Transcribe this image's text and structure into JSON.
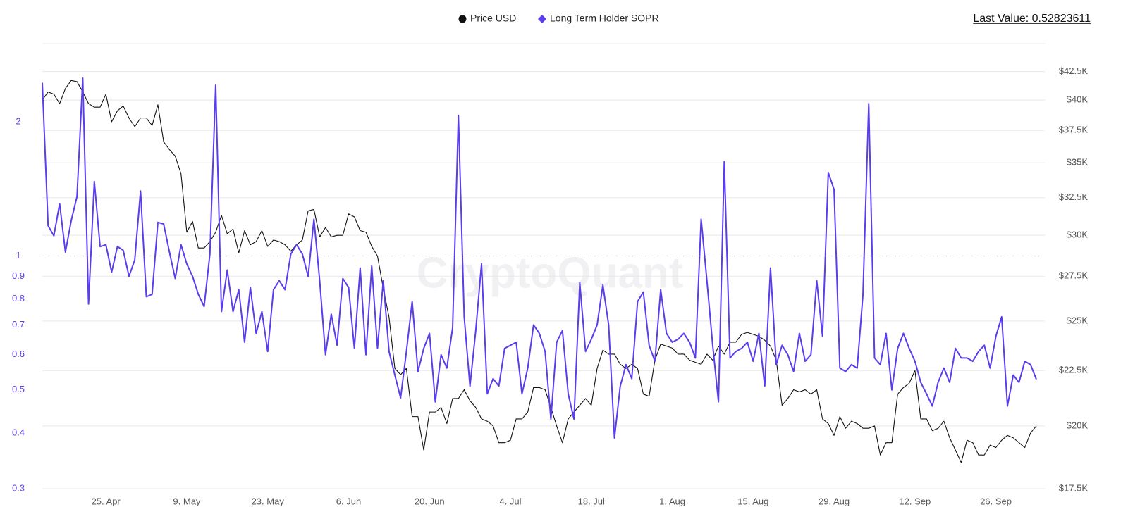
{
  "chart_data": {
    "type": "line",
    "log_scale": true,
    "grid": true,
    "legend": "top",
    "reference_line": 1,
    "annotation": "Last Value: 0.52823611",
    "watermark": "CryptoQuant",
    "categories": [
      null,
      null,
      null,
      null,
      null,
      null,
      null,
      null,
      null,
      null,
      null,
      "25. Apr",
      null,
      null,
      null,
      null,
      null,
      null,
      null,
      null,
      null,
      null,
      null,
      null,
      null,
      "9. May",
      null,
      null,
      null,
      null,
      null,
      null,
      null,
      null,
      null,
      null,
      null,
      null,
      null,
      "23. May",
      null,
      null,
      null,
      null,
      null,
      null,
      null,
      null,
      null,
      null,
      null,
      null,
      null,
      "6. Jun",
      null,
      null,
      null,
      null,
      null,
      null,
      null,
      null,
      null,
      null,
      null,
      null,
      null,
      "20. Jun",
      null,
      null,
      null,
      null,
      null,
      null,
      null,
      null,
      null,
      null,
      null,
      null,
      null,
      "4. Jul",
      null,
      null,
      null,
      null,
      null,
      null,
      null,
      null,
      null,
      null,
      null,
      null,
      null,
      "18. Jul",
      null,
      null,
      null,
      null,
      null,
      null,
      null,
      null,
      null,
      null,
      null,
      null,
      null,
      "1. Aug",
      null,
      null,
      null,
      null,
      null,
      null,
      null,
      null,
      null,
      null,
      null,
      null,
      null,
      "15. Aug",
      null,
      null,
      null,
      null,
      null,
      null,
      null,
      null,
      null,
      null,
      null,
      null,
      null,
      "29. Aug",
      null,
      null,
      null,
      null,
      null,
      null,
      null,
      null,
      null,
      null,
      null,
      null,
      null,
      "12. Sep",
      null,
      null,
      null,
      null,
      null,
      null,
      null,
      null,
      null,
      null,
      null,
      null,
      null,
      "26. Sep",
      null,
      null,
      null,
      null,
      null,
      null,
      null
    ],
    "series": [
      {
        "name": "Price USD",
        "color": "#111111",
        "marker": "circle",
        "axis": "y2",
        "values": [
          40000,
          40700,
          40500,
          39700,
          41000,
          41700,
          41600,
          40700,
          39700,
          39400,
          39400,
          40500,
          38200,
          39100,
          39500,
          38500,
          37800,
          38500,
          38500,
          37900,
          39600,
          36600,
          36000,
          35500,
          34200,
          30200,
          30900,
          29200,
          29200,
          29600,
          30200,
          31300,
          30100,
          30400,
          28900,
          30300,
          29400,
          29600,
          30300,
          29300,
          29700,
          29600,
          29400,
          29000,
          29400,
          29700,
          31600,
          31700,
          29900,
          30500,
          29900,
          30000,
          30000,
          31400,
          31200,
          30300,
          30200,
          29300,
          28700,
          26800,
          25200,
          22600,
          22300,
          22600,
          20400,
          20400,
          19000,
          20600,
          20600,
          20800,
          20100,
          21200,
          21200,
          21600,
          21100,
          20800,
          20300,
          20200,
          20000,
          19300,
          19300,
          19400,
          20300,
          20300,
          20600,
          21700,
          21700,
          21600,
          20800,
          20000,
          19300,
          20300,
          20600,
          20900,
          21200,
          20900,
          22600,
          23500,
          23300,
          23300,
          22800,
          22600,
          22800,
          22600,
          21400,
          21300,
          23000,
          23800,
          23700,
          23600,
          23300,
          23300,
          23000,
          22900,
          22800,
          23300,
          23000,
          23700,
          23300,
          23900,
          23900,
          24300,
          24400,
          24300,
          24200,
          24000,
          23700,
          23000,
          20900,
          21200,
          21600,
          21500,
          21600,
          21400,
          21600,
          20300,
          20100,
          19600,
          20400,
          19900,
          20200,
          20100,
          19900,
          19900,
          20000,
          18800,
          19300,
          19300,
          21400,
          21700,
          21900,
          22500,
          20300,
          20300,
          19800,
          19900,
          20200,
          19500,
          19000,
          18500,
          19400,
          19300,
          18800,
          18800,
          19200,
          19100,
          19400,
          19600,
          19500,
          19300,
          19100,
          19700,
          20000
        ]
      },
      {
        "name": "Long Term Holder SOPR",
        "color": "#5a3ded",
        "marker": "diamond",
        "values": [
          2.45,
          1.17,
          1.11,
          1.31,
          1.02,
          1.2,
          1.36,
          2.51,
          0.78,
          1.47,
          1.05,
          1.06,
          0.92,
          1.05,
          1.03,
          0.9,
          0.98,
          1.4,
          0.81,
          0.82,
          1.19,
          1.18,
          1.02,
          0.89,
          1.06,
          0.96,
          0.9,
          0.82,
          0.77,
          1.01,
          2.42,
          0.75,
          0.93,
          0.75,
          0.84,
          0.64,
          0.85,
          0.67,
          0.75,
          0.61,
          0.84,
          0.88,
          0.84,
          1.01,
          1.06,
          1.01,
          0.9,
          1.21,
          0.88,
          0.6,
          0.74,
          0.63,
          0.89,
          0.85,
          0.62,
          0.94,
          0.6,
          0.95,
          0.62,
          0.88,
          0.61,
          0.54,
          0.48,
          0.61,
          0.79,
          0.55,
          0.62,
          0.67,
          0.47,
          0.6,
          0.56,
          0.69,
          2.07,
          0.73,
          0.51,
          0.68,
          0.96,
          0.49,
          0.53,
          0.51,
          0.62,
          0.63,
          0.64,
          0.49,
          0.56,
          0.7,
          0.67,
          0.61,
          0.43,
          0.64,
          0.68,
          0.49,
          0.43,
          0.87,
          0.61,
          0.65,
          0.7,
          0.86,
          0.7,
          0.39,
          0.51,
          0.57,
          0.53,
          0.79,
          0.83,
          0.63,
          0.58,
          0.84,
          0.67,
          0.64,
          0.65,
          0.67,
          0.64,
          0.59,
          1.21,
          0.88,
          0.63,
          0.47,
          1.63,
          0.59,
          0.61,
          0.62,
          0.64,
          0.58,
          0.67,
          0.51,
          0.94,
          0.57,
          0.63,
          0.6,
          0.55,
          0.67,
          0.58,
          0.6,
          0.88,
          0.66,
          1.54,
          1.41,
          0.56,
          0.55,
          0.57,
          0.56,
          0.82,
          2.2,
          0.59,
          0.57,
          0.67,
          0.5,
          0.62,
          0.67,
          0.62,
          0.58,
          0.52,
          0.49,
          0.46,
          0.52,
          0.56,
          0.52,
          0.62,
          0.59,
          0.59,
          0.58,
          0.61,
          0.63,
          0.56,
          0.66,
          0.73,
          0.46,
          0.54,
          0.52,
          0.58,
          0.57,
          0.52823611
        ]
      }
    ],
    "ylim": [
      0.3,
      3.0
    ],
    "yticks": [
      0.3,
      0.4,
      0.5,
      0.6,
      0.7,
      0.8,
      0.9,
      1,
      2
    ],
    "y2lim": [
      17500,
      45100
    ],
    "y2ticks": [
      {
        "value": 17500,
        "label": "$17.5K"
      },
      {
        "value": 20000,
        "label": "$20K"
      },
      {
        "value": 22500,
        "label": "$22.5K"
      },
      {
        "value": 25000,
        "label": "$25K"
      },
      {
        "value": 27500,
        "label": "$27.5K"
      },
      {
        "value": 30000,
        "label": "$30K"
      },
      {
        "value": 32500,
        "label": "$32.5K"
      },
      {
        "value": 35000,
        "label": "$35K"
      },
      {
        "value": 37500,
        "label": "$37.5K"
      },
      {
        "value": 40000,
        "label": "$40K"
      },
      {
        "value": 42500,
        "label": "$42.5K"
      }
    ]
  }
}
